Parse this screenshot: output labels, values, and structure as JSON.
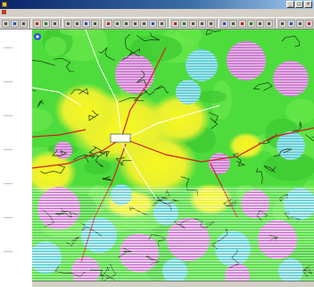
{
  "window": {
    "title": "",
    "controls": [
      "minimize",
      "maximize",
      "close"
    ]
  },
  "menubar": {
    "items": [
      "",
      "",
      "",
      "",
      "",
      "",
      "",
      "",
      "",
      ""
    ]
  },
  "toolbar": {
    "buttons": 40
  },
  "map": {
    "town_label": "",
    "colors": {
      "green": "#4ddc3c",
      "yellow": "#f5f52a",
      "magenta": "#e060e8",
      "cyan": "#5ac8f0",
      "red_line": "#d02020",
      "contour": "#1a3a10"
    }
  }
}
